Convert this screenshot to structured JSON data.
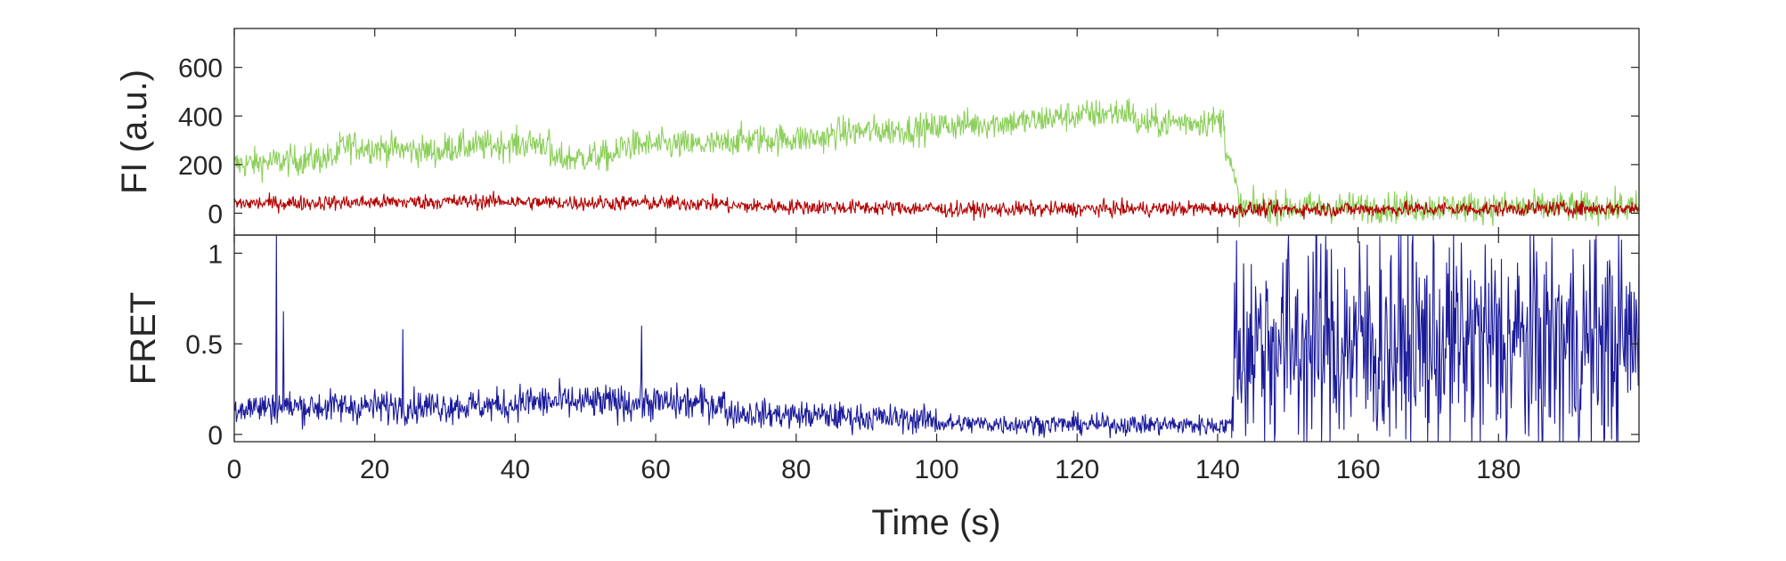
{
  "colors": {
    "donor": "#8ccf5a",
    "acceptor": "#b30000",
    "fret": "#1a1a9a",
    "axis": "#262626"
  },
  "chart_data": [
    {
      "type": "line",
      "panel": "top",
      "ylabel": "FI (a.u.)",
      "xlabel": "",
      "xlim": [
        0,
        200
      ],
      "ylim": [
        -90,
        760
      ],
      "xticks": [
        0,
        20,
        40,
        60,
        80,
        100,
        120,
        140,
        160,
        180
      ],
      "yticks": [
        0,
        200,
        400,
        600
      ],
      "ytick_labels": [
        "0",
        "200",
        "400",
        "600"
      ],
      "grid": false,
      "series": [
        {
          "color_key": "donor",
          "sampling_interval": 0.1,
          "noise_amplitude": 90,
          "segments": [
            {
              "x": [
                0,
                15
              ],
              "y": [
                200,
                230
              ]
            },
            {
              "x": [
                15,
                30
              ],
              "y": [
                280,
                250
              ]
            },
            {
              "x": [
                30,
                45
              ],
              "y": [
                270,
                290
              ]
            },
            {
              "x": [
                45,
                55
              ],
              "y": [
                220,
                240
              ]
            },
            {
              "x": [
                55,
                70
              ],
              "y": [
                280,
                280
              ]
            },
            {
              "x": [
                70,
                85
              ],
              "y": [
                300,
                310
              ]
            },
            {
              "x": [
                85,
                100
              ],
              "y": [
                330,
                350
              ]
            },
            {
              "x": [
                100,
                115
              ],
              "y": [
                360,
                380
              ]
            },
            {
              "x": [
                115,
                128
              ],
              "y": [
                390,
                420
              ]
            },
            {
              "x": [
                128,
                141
              ],
              "y": [
                370,
                380
              ]
            },
            {
              "x": [
                141,
                143
              ],
              "y": [
                300,
                60
              ]
            },
            {
              "x": [
                143,
                200
              ],
              "y": [
                25,
                25
              ]
            }
          ]
        },
        {
          "color_key": "acceptor",
          "sampling_interval": 0.1,
          "noise_amplitude": 45,
          "segments": [
            {
              "x": [
                0,
                40
              ],
              "y": [
                40,
                50
              ]
            },
            {
              "x": [
                40,
                70
              ],
              "y": [
                45,
                40
              ]
            },
            {
              "x": [
                70,
                100
              ],
              "y": [
                30,
                20
              ]
            },
            {
              "x": [
                100,
                141
              ],
              "y": [
                15,
                20
              ]
            },
            {
              "x": [
                141,
                200
              ],
              "y": [
                15,
                20
              ]
            }
          ]
        }
      ]
    },
    {
      "type": "line",
      "panel": "bottom",
      "ylabel": "FRET",
      "xlabel": "Time (s)",
      "xlim": [
        0,
        200
      ],
      "ylim": [
        -0.04,
        1.1
      ],
      "xticks": [
        0,
        20,
        40,
        60,
        80,
        100,
        120,
        140,
        160,
        180
      ],
      "xtick_labels": [
        "0",
        "20",
        "40",
        "60",
        "80",
        "100",
        "120",
        "140",
        "160",
        "180"
      ],
      "yticks": [
        0,
        0.5,
        1
      ],
      "ytick_labels": [
        "0",
        "0.5",
        "1"
      ],
      "grid": false,
      "series": [
        {
          "color_key": "fret",
          "sampling_interval": 0.1,
          "clip_to_axes": true,
          "segments": [
            {
              "x": [
                0,
                40
              ],
              "y": [
                0.15,
                0.16
              ],
              "noise": 0.13
            },
            {
              "x": [
                40,
                70
              ],
              "y": [
                0.18,
                0.17
              ],
              "noise": 0.14
            },
            {
              "x": [
                70,
                100
              ],
              "y": [
                0.12,
                0.08
              ],
              "noise": 0.11
            },
            {
              "x": [
                100,
                142
              ],
              "y": [
                0.06,
                0.05
              ],
              "noise": 0.08
            },
            {
              "x": [
                142,
                200
              ],
              "y": [
                0.5,
                0.5
              ],
              "noise": 0.9
            }
          ],
          "spikes": [
            {
              "x": 6.0,
              "y": 1.1
            },
            {
              "x": 7.0,
              "y": 0.68
            },
            {
              "x": 24.0,
              "y": 0.58
            },
            {
              "x": 58.0,
              "y": 0.6
            }
          ]
        }
      ]
    }
  ]
}
